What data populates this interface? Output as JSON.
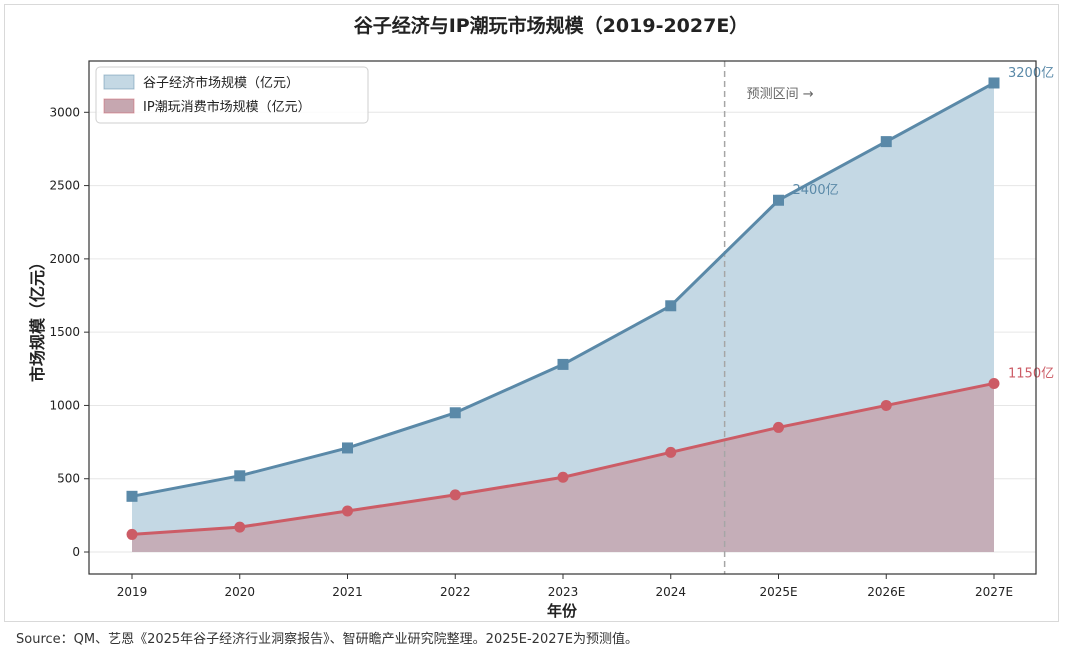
{
  "chart_data": {
    "type": "area",
    "title": "谷子经济与IP潮玩市场规模（2019-2027E）",
    "xlabel": "年份",
    "ylabel": "市场规模（亿元）",
    "categories": [
      "2019",
      "2020",
      "2021",
      "2022",
      "2023",
      "2024",
      "2025E",
      "2026E",
      "2027E"
    ],
    "series": [
      {
        "name": "谷子经济市场规模（亿元）",
        "values": [
          380,
          520,
          710,
          950,
          1280,
          1680,
          2400,
          2800,
          3200
        ],
        "color": "#5a89a8",
        "fill": "#c4d8e4",
        "marker": "square"
      },
      {
        "name": "IP潮玩消费市场规模（亿元）",
        "values": [
          120,
          170,
          280,
          390,
          510,
          680,
          850,
          1000,
          1150
        ],
        "color": "#cc5c66",
        "fill": "#c6a7b0",
        "marker": "circle"
      }
    ],
    "ylim": [
      -150,
      3350
    ],
    "yticks": [
      0,
      500,
      1000,
      1500,
      2000,
      2500,
      3000
    ],
    "grid": true,
    "legend_position": "top-left",
    "forecast_divider": {
      "after_index": 5,
      "label": "预测区间 →",
      "color": "#a6a6a6"
    },
    "annotations": [
      {
        "index": 6,
        "series": 0,
        "text": "2400亿"
      },
      {
        "index": 8,
        "series": 0,
        "text": "3200亿"
      },
      {
        "index": 8,
        "series": 1,
        "text": "1150亿"
      }
    ]
  },
  "source_note": "Source：QM、艺恩《2025年谷子经济行业洞察报告》、智研瞻产业研究院整理。2025E-2027E为预测值。"
}
